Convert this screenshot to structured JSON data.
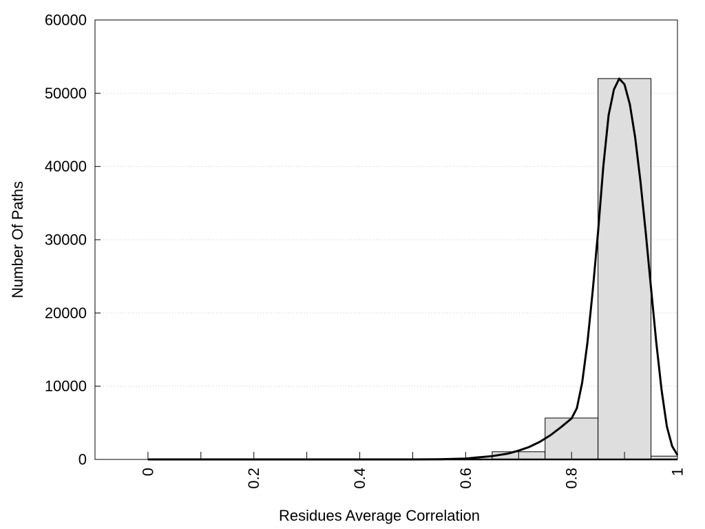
{
  "chart_data": {
    "type": "bar",
    "title": "",
    "xlabel": "Residues Average Correlation",
    "ylabel": "Number Of Paths",
    "xlim": [
      -0.1,
      1.0
    ],
    "ylim": [
      0,
      60000
    ],
    "grid": true,
    "legend": "none",
    "x_ticks": [
      0,
      0.2,
      0.4,
      0.6,
      0.8,
      1
    ],
    "x_tick_labels": [
      "0",
      "0.2",
      "0.4",
      "0.6",
      "0.8",
      "1"
    ],
    "x_minor_ticks": [
      0.1,
      0.3,
      0.5,
      0.7,
      0.9
    ],
    "y_ticks": [
      0,
      10000,
      20000,
      30000,
      40000,
      50000,
      60000
    ],
    "y_tick_labels": [
      "0",
      "10000",
      "20000",
      "30000",
      "40000",
      "50000",
      "60000"
    ],
    "bars": [
      {
        "x0": 0.65,
        "x1": 0.75,
        "value": 1050
      },
      {
        "x0": 0.75,
        "x1": 0.85,
        "value": 5650
      },
      {
        "x0": 0.85,
        "x1": 0.95,
        "value": 52000
      },
      {
        "x0": 0.95,
        "x1": 1.0,
        "value": 450
      }
    ],
    "fit_curve": {
      "x": [
        0.0,
        0.5,
        0.55,
        0.6,
        0.62,
        0.65,
        0.68,
        0.7,
        0.72,
        0.74,
        0.76,
        0.78,
        0.8,
        0.81,
        0.82,
        0.83,
        0.84,
        0.85,
        0.86,
        0.87,
        0.88,
        0.89,
        0.9,
        0.91,
        0.92,
        0.93,
        0.94,
        0.95,
        0.96,
        0.97,
        0.98,
        0.99,
        1.0
      ],
      "y": [
        0,
        0,
        30,
        120,
        250,
        450,
        800,
        1200,
        1700,
        2400,
        3300,
        4400,
        5600,
        7000,
        10500,
        16000,
        23000,
        31000,
        40000,
        47000,
        50500,
        52000,
        51200,
        48500,
        44000,
        38000,
        31000,
        23500,
        16000,
        9500,
        4500,
        1800,
        600
      ]
    },
    "colors": {
      "bar_fill": "#dedede",
      "bar_stroke": "#000000",
      "curve": "#000000",
      "grid": "#cccccc"
    }
  }
}
